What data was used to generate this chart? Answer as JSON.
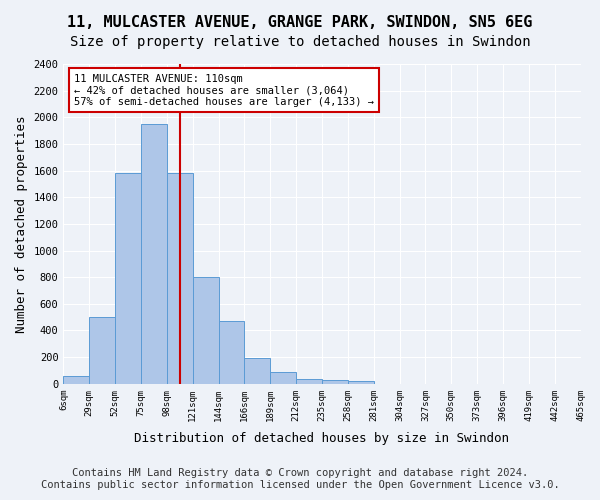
{
  "title1": "11, MULCASTER AVENUE, GRANGE PARK, SWINDON, SN5 6EG",
  "title2": "Size of property relative to detached houses in Swindon",
  "xlabel": "Distribution of detached houses by size in Swindon",
  "ylabel": "Number of detached properties",
  "footer1": "Contains HM Land Registry data © Crown copyright and database right 2024.",
  "footer2": "Contains public sector information licensed under the Open Government Licence v3.0.",
  "bin_labels": [
    "6sqm",
    "29sqm",
    "52sqm",
    "75sqm",
    "98sqm",
    "121sqm",
    "144sqm",
    "166sqm",
    "189sqm",
    "212sqm",
    "235sqm",
    "258sqm",
    "281sqm",
    "304sqm",
    "327sqm",
    "350sqm",
    "373sqm",
    "396sqm",
    "419sqm",
    "442sqm",
    "465sqm"
  ],
  "bar_values": [
    60,
    500,
    1580,
    1950,
    1580,
    800,
    470,
    195,
    90,
    35,
    25,
    20,
    0,
    0,
    0,
    0,
    0,
    0,
    0,
    0
  ],
  "bar_color": "#aec6e8",
  "bar_edge_color": "#5b9bd5",
  "property_value": 110,
  "vline_x": 110,
  "vline_color": "#cc0000",
  "annotation_text": "11 MULCASTER AVENUE: 110sqm\n← 42% of detached houses are smaller (3,064)\n57% of semi-detached houses are larger (4,133) →",
  "annotation_box_color": "#ffffff",
  "annotation_box_edge": "#cc0000",
  "ylim": [
    0,
    2400
  ],
  "yticks": [
    0,
    200,
    400,
    600,
    800,
    1000,
    1200,
    1400,
    1600,
    1800,
    2000,
    2200,
    2400
  ],
  "bg_color": "#eef2f8",
  "axes_bg_color": "#eef2f8",
  "grid_color": "#ffffff",
  "title1_fontsize": 11,
  "title2_fontsize": 10,
  "xlabel_fontsize": 9,
  "ylabel_fontsize": 9,
  "footer_fontsize": 7.5
}
